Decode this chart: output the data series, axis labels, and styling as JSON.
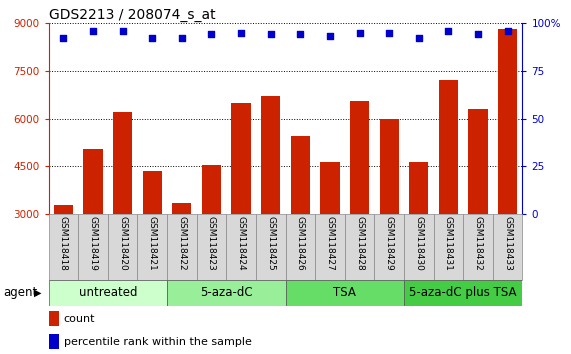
{
  "title": "GDS2213 / 208074_s_at",
  "samples": [
    "GSM118418",
    "GSM118419",
    "GSM118420",
    "GSM118421",
    "GSM118422",
    "GSM118423",
    "GSM118424",
    "GSM118425",
    "GSM118426",
    "GSM118427",
    "GSM118428",
    "GSM118429",
    "GSM118430",
    "GSM118431",
    "GSM118432",
    "GSM118433"
  ],
  "counts": [
    3300,
    5050,
    6200,
    4350,
    3350,
    4550,
    6500,
    6700,
    5450,
    4650,
    6550,
    6000,
    4650,
    7200,
    6300,
    8800
  ],
  "percentile_ranks": [
    92,
    96,
    96,
    92,
    92,
    94,
    95,
    94,
    94,
    93,
    95,
    95,
    92,
    96,
    94,
    96
  ],
  "bar_color": "#cc2200",
  "dot_color": "#0000cc",
  "ylim_left": [
    3000,
    9000
  ],
  "ylim_right": [
    0,
    100
  ],
  "yticks_left": [
    3000,
    4500,
    6000,
    7500,
    9000
  ],
  "yticks_right": [
    0,
    25,
    50,
    75,
    100
  ],
  "groups": [
    {
      "label": "untreated",
      "start": 0,
      "end": 4,
      "color": "#ccffcc"
    },
    {
      "label": "5-aza-dC",
      "start": 4,
      "end": 8,
      "color": "#99ee99"
    },
    {
      "label": "TSA",
      "start": 8,
      "end": 12,
      "color": "#66dd66"
    },
    {
      "label": "5-aza-dC plus TSA",
      "start": 12,
      "end": 16,
      "color": "#44cc44"
    }
  ],
  "agent_label": "agent",
  "legend_count_label": "count",
  "legend_percentile_label": "percentile rank within the sample",
  "background_color": "#ffffff",
  "left_axis_color": "#cc2200",
  "right_axis_color": "#0000cc",
  "title_fontsize": 10,
  "tick_fontsize": 7.5,
  "group_label_fontsize": 8.5,
  "legend_fontsize": 8
}
